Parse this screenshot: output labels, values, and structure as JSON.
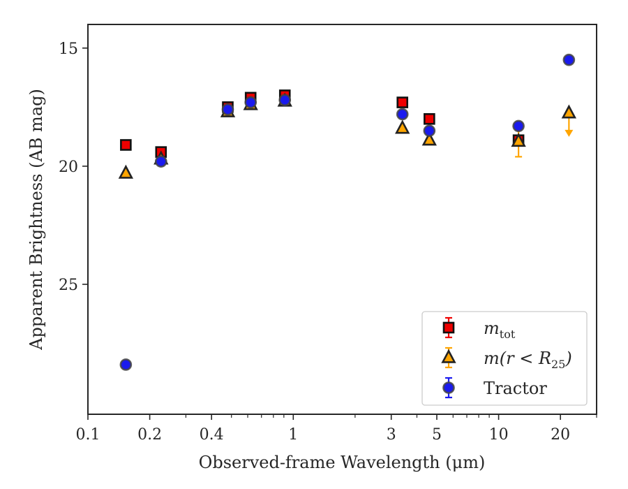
{
  "chart_data": {
    "type": "scatter",
    "title": "",
    "xlabel": "Observed-frame Wavelength (μm)",
    "ylabel": "Apparent Brightness (AB mag)",
    "xscale": "log",
    "xlim": [
      0.1,
      30
    ],
    "ylim": [
      30.5,
      14
    ],
    "y_inverted": true,
    "grid": false,
    "legend_position": "lower-right",
    "x_ticks": [
      {
        "value": 0.1,
        "label": "0.1"
      },
      {
        "value": 0.2,
        "label": "0.2"
      },
      {
        "value": 0.4,
        "label": "0.4"
      },
      {
        "value": 1,
        "label": "1"
      },
      {
        "value": 3,
        "label": "3"
      },
      {
        "value": 5,
        "label": "5"
      },
      {
        "value": 10,
        "label": "10"
      },
      {
        "value": 20,
        "label": "20"
      }
    ],
    "y_ticks": [
      {
        "value": 15,
        "label": "15"
      },
      {
        "value": 20,
        "label": "20"
      },
      {
        "value": 25,
        "label": "25"
      }
    ],
    "series": [
      {
        "name": "m_tot",
        "legend_label": "m",
        "legend_sub": "tot",
        "marker": "square",
        "color": "#ee0000",
        "edge": "#111111",
        "errcolor": "#ee0000",
        "points": [
          {
            "x": 0.153,
            "y": 19.1
          },
          {
            "x": 0.227,
            "y": 19.4
          },
          {
            "x": 0.48,
            "y": 17.5
          },
          {
            "x": 0.62,
            "y": 17.1
          },
          {
            "x": 0.91,
            "y": 17.0
          },
          {
            "x": 3.4,
            "y": 17.3
          },
          {
            "x": 4.6,
            "y": 18.0
          },
          {
            "x": 12.5,
            "y": 18.9
          }
        ]
      },
      {
        "name": "m(r<R25)",
        "legend_label": "m(r < R",
        "legend_sub": "25",
        "legend_suffix": ")",
        "marker": "triangle",
        "color": "#ffa500",
        "edge": "#222222",
        "errcolor": "#ffa500",
        "points": [
          {
            "x": 0.153,
            "y": 20.3
          },
          {
            "x": 0.227,
            "y": 19.7
          },
          {
            "x": 0.48,
            "y": 17.7
          },
          {
            "x": 0.62,
            "y": 17.4
          },
          {
            "x": 0.91,
            "y": 17.25
          },
          {
            "x": 3.4,
            "y": 18.4
          },
          {
            "x": 4.6,
            "y": 18.9
          },
          {
            "x": 12.5,
            "y": 18.95,
            "yerr": 0.65
          },
          {
            "x": 22,
            "y": 17.75,
            "upper_limit": true
          }
        ]
      },
      {
        "name": "Tractor",
        "legend_label": "Tractor",
        "marker": "circle",
        "color": "#1a1aee",
        "edge": "#444444",
        "errcolor": "#1a1aee",
        "points": [
          {
            "x": 0.153,
            "y": 28.4
          },
          {
            "x": 0.227,
            "y": 19.8
          },
          {
            "x": 0.48,
            "y": 17.6
          },
          {
            "x": 0.62,
            "y": 17.3
          },
          {
            "x": 0.91,
            "y": 17.2
          },
          {
            "x": 3.4,
            "y": 17.8
          },
          {
            "x": 4.6,
            "y": 18.5
          },
          {
            "x": 12.5,
            "y": 18.3
          },
          {
            "x": 22,
            "y": 15.5
          }
        ]
      }
    ]
  }
}
